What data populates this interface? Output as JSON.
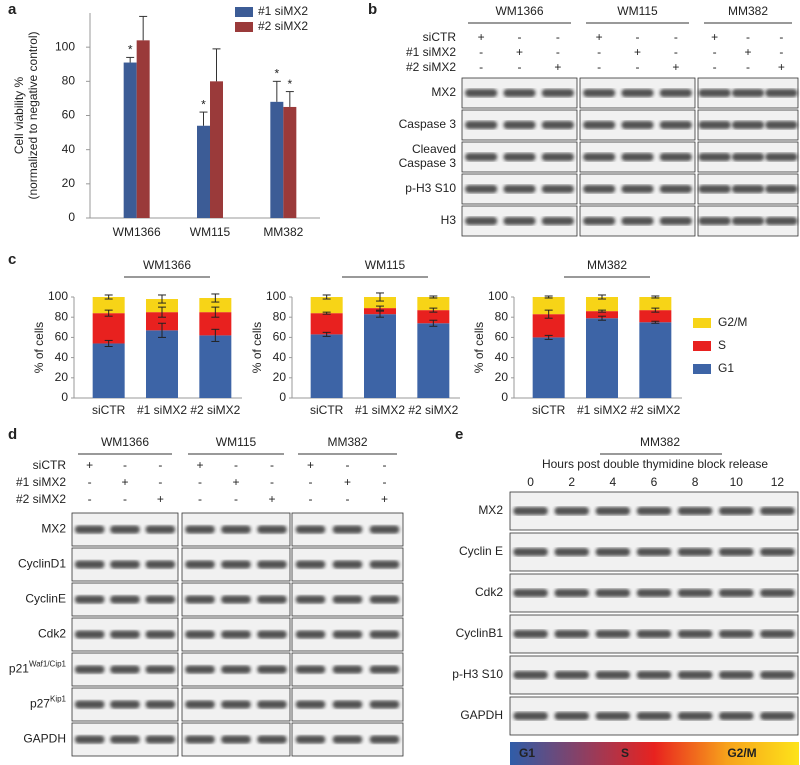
{
  "panel_labels": [
    "a",
    "b",
    "c",
    "d",
    "e"
  ],
  "chart_data": [
    {
      "type": "bar",
      "y_label": [
        "Cell viability %",
        "(normalized to negative control)"
      ],
      "categories": [
        "WM1366",
        "WM115",
        "MM382"
      ],
      "series": [
        {
          "name": "#1 siMX2",
          "color": "#3c5c96",
          "values": [
            91,
            54,
            68
          ],
          "errors": [
            3,
            8,
            12
          ],
          "annotations": [
            "*",
            "*",
            "*"
          ]
        },
        {
          "name": "#2 siMX2",
          "color": "#9a3a3a",
          "values": [
            104,
            80,
            65
          ],
          "errors": [
            14,
            19,
            9
          ],
          "annotations": [
            null,
            null,
            "*"
          ]
        }
      ],
      "ylim": [
        0,
        120
      ],
      "yticks": [
        0,
        20,
        40,
        60,
        80,
        100
      ],
      "legend": "top-right"
    },
    {
      "type": "stacked_bar",
      "title": "WM1366",
      "y_label": "% of cells",
      "categories": [
        "siCTR",
        "#1 siMX2",
        "#2 siMX2"
      ],
      "series": [
        {
          "name": "G1",
          "color": "#3d64a6",
          "values": [
            54,
            67,
            62
          ],
          "errors": [
            3,
            7,
            6
          ]
        },
        {
          "name": "S",
          "color": "#e8211f",
          "values": [
            30,
            18,
            23
          ],
          "errors": [
            3,
            5,
            5
          ]
        },
        {
          "name": "G2/M",
          "color": "#f7d417",
          "values": [
            16,
            13,
            14
          ],
          "errors": [
            2,
            4,
            4
          ]
        }
      ],
      "ylim": [
        0,
        100
      ],
      "yticks": [
        0,
        20,
        40,
        60,
        80,
        100
      ]
    },
    {
      "type": "stacked_bar",
      "title": "WM115",
      "y_label": "% of cells",
      "categories": [
        "siCTR",
        "#1 siMX2",
        "#2 siMX2"
      ],
      "series": [
        {
          "name": "G1",
          "color": "#3d64a6",
          "values": [
            63,
            83,
            74
          ],
          "errors": [
            2,
            3,
            3
          ]
        },
        {
          "name": "S",
          "color": "#e8211f",
          "values": [
            21,
            6,
            13
          ],
          "errors": [
            1,
            2,
            2
          ]
        },
        {
          "name": "G2/M",
          "color": "#f7d417",
          "values": [
            16,
            11,
            13
          ],
          "errors": [
            2,
            4,
            1
          ]
        }
      ],
      "ylim": [
        0,
        100
      ],
      "yticks": [
        0,
        20,
        40,
        60,
        80,
        100
      ]
    },
    {
      "type": "stacked_bar",
      "title": "MM382",
      "y_label": "% of cells",
      "categories": [
        "siCTR",
        "#1 siMX2",
        "#2 siMX2"
      ],
      "series": [
        {
          "name": "G1",
          "color": "#3d64a6",
          "values": [
            60,
            79,
            75
          ],
          "errors": [
            2,
            2,
            1
          ]
        },
        {
          "name": "S",
          "color": "#e8211f",
          "values": [
            23,
            7,
            12
          ],
          "errors": [
            4,
            1,
            2
          ]
        },
        {
          "name": "G2/M",
          "color": "#f7d417",
          "values": [
            17,
            14,
            13
          ],
          "errors": [
            1,
            2,
            1
          ]
        }
      ],
      "ylim": [
        0,
        100
      ],
      "yticks": [
        0,
        20,
        40,
        60,
        80,
        100
      ],
      "legend": "right"
    }
  ],
  "blot_b": {
    "groups": [
      "WM1366",
      "WM115",
      "MM382"
    ],
    "conditions": [
      {
        "label": "siCTR",
        "signs": [
          "+",
          "-",
          "-",
          "+",
          "-",
          "-",
          "+",
          "-",
          "-"
        ]
      },
      {
        "label": "#1 siMX2",
        "signs": [
          "-",
          "+",
          "-",
          "-",
          "+",
          "-",
          "-",
          "+",
          "-"
        ]
      },
      {
        "label": "#2 siMX2",
        "signs": [
          "-",
          "-",
          "+",
          "-",
          "-",
          "+",
          "-",
          "-",
          "+"
        ]
      }
    ],
    "rows": [
      {
        "label": "MX2"
      },
      {
        "label": "Caspase 3"
      },
      {
        "label": [
          "Cleaved",
          "Caspase 3"
        ]
      },
      {
        "label": "p-H3 S10"
      },
      {
        "label": "H3"
      }
    ]
  },
  "blot_d": {
    "groups": [
      "WM1366",
      "WM115",
      "MM382"
    ],
    "conditions": [
      {
        "label": "siCTR",
        "signs": [
          "+",
          "-",
          "-",
          "+",
          "-",
          "-",
          "+",
          "-",
          "-"
        ]
      },
      {
        "label": "#1 siMX2",
        "signs": [
          "-",
          "+",
          "-",
          "-",
          "+",
          "-",
          "-",
          "+",
          "-"
        ]
      },
      {
        "label": "#2 siMX2",
        "signs": [
          "-",
          "-",
          "+",
          "-",
          "-",
          "+",
          "-",
          "-",
          "+"
        ]
      }
    ],
    "rows": [
      {
        "label": "MX2"
      },
      {
        "label": "CyclinD1"
      },
      {
        "label": "CyclinE"
      },
      {
        "label": "Cdk2"
      },
      {
        "label": "p21",
        "sup": "Waf1/Cip1"
      },
      {
        "label": "p27",
        "sup": "Kip1"
      },
      {
        "label": "GAPDH"
      }
    ]
  },
  "blot_e": {
    "title": "MM382",
    "subtitle": "Hours post double thymidine block release",
    "lanes": [
      0,
      2,
      4,
      6,
      8,
      10,
      12
    ],
    "rows": [
      {
        "label": "MX2"
      },
      {
        "label": "Cyclin E"
      },
      {
        "label": "Cdk2"
      },
      {
        "label": "CyclinB1"
      },
      {
        "label": "p-H3 S10"
      },
      {
        "label": "GAPDH"
      }
    ],
    "phases": [
      "G1",
      "S",
      "G2/M"
    ]
  }
}
